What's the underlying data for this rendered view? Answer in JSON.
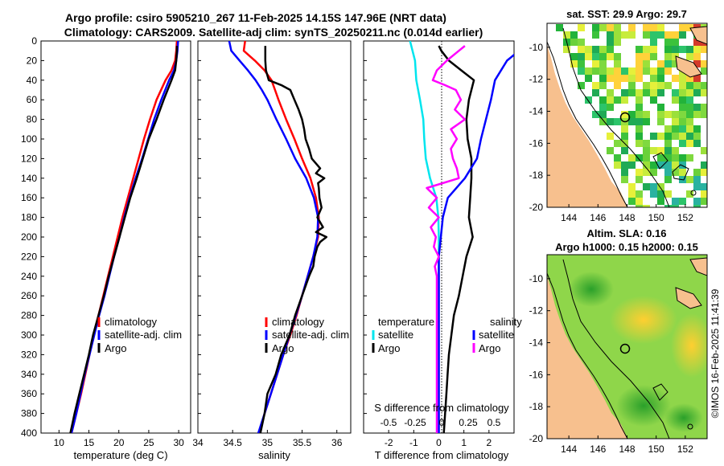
{
  "header": {
    "title_line1": "Argo profile: csiro 5905210_267 11-Feb-2025 14.15S 147.96E (NRT data)",
    "title_line2": "Climatology: CARS2009. Satellite-adj clim: synTS_20250211.nc (0.014d earlier)"
  },
  "colors": {
    "climatology": "#ff0000",
    "satellite": "#0000ff",
    "argo": "#000000",
    "t_satellite_diff": "#00e5ee",
    "t_argo_diff": "#000000",
    "s_satellite_diff": "#0000ff",
    "s_argo_diff": "#ff00ff",
    "land": "#f7c08e"
  },
  "watermark": "©IMOS 16-Feb-2025 11:41:39",
  "chart_data": [
    {
      "type": "line",
      "id": "temperature",
      "xlabel": "temperature (deg C)",
      "ylabel": "",
      "xlim": [
        7,
        32
      ],
      "ylim": [
        400,
        0
      ],
      "xticks": [
        10,
        15,
        20,
        25,
        30
      ],
      "yticks": [
        0,
        20,
        40,
        60,
        80,
        100,
        120,
        140,
        160,
        180,
        200,
        220,
        240,
        260,
        280,
        300,
        320,
        340,
        360,
        380,
        400
      ],
      "legend": [
        "climatology",
        "satellite-adj. clim",
        "Argo"
      ],
      "series": [
        {
          "name": "climatology",
          "depth": [
            0,
            10,
            20,
            30,
            40,
            60,
            80,
            100,
            120,
            140,
            160,
            180,
            200,
            220,
            240,
            260,
            280,
            300,
            320,
            340,
            360,
            380,
            400
          ],
          "values": [
            29.7,
            29.6,
            29.4,
            28.8,
            27.8,
            26.3,
            25.2,
            24.2,
            23.3,
            22.4,
            21.5,
            20.6,
            19.8,
            19.0,
            18.2,
            17.4,
            16.6,
            15.8,
            15.1,
            14.4,
            13.7,
            12.9,
            12.1
          ]
        },
        {
          "name": "satellite-adj. clim",
          "depth": [
            0,
            10,
            20,
            30,
            40,
            60,
            80,
            100,
            120,
            140,
            160,
            180,
            200,
            220,
            240,
            260,
            280,
            300,
            320,
            340,
            360,
            380,
            400
          ],
          "values": [
            29.9,
            29.8,
            29.6,
            29.2,
            28.4,
            27.1,
            25.9,
            24.9,
            23.9,
            22.8,
            21.8,
            20.9,
            20.1,
            19.2,
            18.4,
            17.6,
            16.7,
            15.9,
            15.1,
            14.3,
            13.6,
            12.9,
            12.1
          ]
        },
        {
          "name": "Argo",
          "depth": [
            5,
            10,
            20,
            30,
            40,
            60,
            80,
            100,
            120,
            140,
            160,
            180,
            200,
            220,
            240,
            260,
            280,
            300,
            320,
            340,
            360,
            380,
            400
          ],
          "values": [
            29.7,
            29.7,
            29.6,
            29.4,
            28.8,
            27.5,
            26.3,
            25.0,
            24.0,
            23.0,
            21.9,
            21.0,
            20.1,
            19.2,
            18.3,
            17.5,
            16.6,
            15.7,
            15.0,
            14.2,
            13.4,
            12.6,
            11.9
          ]
        }
      ]
    },
    {
      "type": "line",
      "id": "salinity",
      "xlabel": "salinity",
      "ylabel": "",
      "xlim": [
        34,
        36.2
      ],
      "ylim": [
        400,
        0
      ],
      "xticks": [
        34,
        34.5,
        35,
        35.5,
        36
      ],
      "legend": [
        "climatology",
        "satellite-adj. clim",
        "Argo"
      ],
      "series": [
        {
          "name": "climatology",
          "depth": [
            0,
            10,
            20,
            30,
            40,
            50,
            60,
            80,
            100,
            120,
            140,
            160,
            180,
            200,
            220,
            240,
            260,
            280,
            300,
            320,
            340,
            360,
            380,
            400
          ],
          "values": [
            34.68,
            34.66,
            34.82,
            34.96,
            35.06,
            35.11,
            35.16,
            35.27,
            35.39,
            35.5,
            35.62,
            35.7,
            35.74,
            35.73,
            35.66,
            35.58,
            35.5,
            35.42,
            35.33,
            35.23,
            35.14,
            35.05,
            34.96,
            34.88
          ]
        },
        {
          "name": "satellite-adj. clim",
          "depth": [
            0,
            10,
            20,
            30,
            40,
            50,
            60,
            80,
            100,
            120,
            140,
            160,
            180,
            200,
            220,
            240,
            260,
            280,
            300,
            320,
            340,
            360,
            380,
            400
          ],
          "values": [
            34.45,
            34.48,
            34.6,
            34.72,
            34.83,
            34.92,
            35.0,
            35.13,
            35.27,
            35.4,
            35.56,
            35.67,
            35.73,
            35.72,
            35.66,
            35.58,
            35.5,
            35.41,
            35.32,
            35.23,
            35.14,
            35.05,
            34.96,
            34.87
          ]
        },
        {
          "name": "Argo",
          "depth": [
            5,
            10,
            20,
            30,
            40,
            45,
            50,
            60,
            70,
            80,
            90,
            100,
            110,
            120,
            130,
            135,
            140,
            145,
            150,
            160,
            170,
            180,
            190,
            195,
            200,
            205,
            210,
            220,
            230,
            240,
            260,
            280,
            300,
            320,
            340,
            360,
            380,
            400
          ],
          "values": [
            34.97,
            34.97,
            34.97,
            34.98,
            35.02,
            35.2,
            35.33,
            35.39,
            35.45,
            35.5,
            35.53,
            35.55,
            35.6,
            35.64,
            35.76,
            35.7,
            35.82,
            35.73,
            35.74,
            35.75,
            35.78,
            35.72,
            35.8,
            35.7,
            35.85,
            35.76,
            35.72,
            35.68,
            35.66,
            35.6,
            35.5,
            35.4,
            35.32,
            35.2,
            35.12,
            35.0,
            34.96,
            34.9
          ]
        }
      ]
    },
    {
      "type": "line",
      "id": "differences",
      "xlabel": "T difference from climatology",
      "ylabel": "",
      "xlim": [
        -3,
        3
      ],
      "ylim": [
        400,
        0
      ],
      "xticks": [
        -2,
        -1,
        0,
        1,
        2
      ],
      "top_axis_label": "S difference from climatology",
      "top_ticks": [
        "-0.5",
        "-0.25",
        "0",
        "0.25",
        "0.5"
      ],
      "legend_left_title": "temperature",
      "legend_right_title": "salinity",
      "legend": [
        "satellite",
        "Argo",
        "satellite",
        "Argo"
      ],
      "series": [
        {
          "name": "T satellite",
          "depth": [
            0,
            10,
            20,
            40,
            60,
            80,
            100,
            120,
            140,
            160,
            180,
            200,
            220,
            240,
            260,
            280,
            300,
            320,
            340,
            360,
            380,
            400
          ],
          "values": [
            -1.15,
            -1.05,
            -0.95,
            -0.9,
            -0.75,
            -0.62,
            -0.58,
            -0.52,
            -0.35,
            -0.1,
            -0.02,
            0.0,
            0.0,
            0.0,
            0.0,
            0.0,
            0.0,
            0.0,
            0.0,
            0.0,
            0.0,
            0.0
          ]
        },
        {
          "name": "T Argo",
          "depth": [
            5,
            10,
            20,
            30,
            40,
            60,
            80,
            100,
            120,
            140,
            160,
            180,
            200,
            220,
            240,
            260,
            280,
            300,
            320,
            340,
            360,
            380,
            400
          ],
          "values": [
            0.0,
            0.1,
            0.4,
            0.9,
            1.4,
            1.2,
            1.1,
            1.15,
            1.3,
            1.3,
            1.25,
            1.2,
            1.35,
            1.1,
            0.95,
            0.8,
            0.6,
            0.5,
            0.4,
            0.35,
            0.3,
            0.25,
            0.2
          ]
        },
        {
          "name": "S satellite",
          "depth": [
            0,
            10,
            20,
            40,
            60,
            80,
            100,
            120,
            140,
            160,
            180,
            200,
            220,
            240,
            260,
            280,
            300,
            320,
            340,
            360,
            380,
            400
          ],
          "values": [
            0.84,
            0.8,
            0.68,
            0.56,
            0.52,
            0.47,
            0.42,
            0.38,
            0.26,
            0.09,
            0.04,
            0.02,
            0.0,
            0.0,
            0.0,
            0.0,
            0.0,
            0.0,
            0.0,
            0.0,
            0.0,
            0.0
          ]
        },
        {
          "name": "S Argo",
          "depth": [
            5,
            10,
            20,
            30,
            40,
            45,
            50,
            60,
            70,
            80,
            90,
            100,
            110,
            120,
            130,
            140,
            150,
            160,
            170,
            180,
            190,
            200,
            210,
            220,
            230,
            240,
            260,
            280,
            300,
            320,
            340,
            360,
            380,
            400
          ],
          "values": [
            0.26,
            0.2,
            0.08,
            -0.02,
            -0.06,
            0.06,
            0.17,
            0.22,
            0.16,
            0.26,
            0.12,
            0.18,
            0.12,
            0.14,
            0.18,
            0.2,
            -0.12,
            -0.02,
            -0.1,
            0.0,
            -0.08,
            -0.03,
            -0.05,
            0.0,
            -0.04,
            -0.02,
            -0.02,
            -0.02,
            -0.02,
            -0.02,
            -0.02,
            -0.02,
            -0.02,
            -0.02
          ]
        }
      ]
    },
    {
      "type": "heatmap",
      "id": "sst_map",
      "title": "sat. SST: 29.9 Argo: 29.7",
      "xlim": [
        142.5,
        153.5
      ],
      "ylim": [
        -20,
        -8.5
      ],
      "xticks": [
        144,
        146,
        148,
        150,
        152
      ],
      "yticks": [
        -10,
        -12,
        -14,
        -16,
        -18,
        -20
      ],
      "argo_position": {
        "lon": 147.96,
        "lat": -14.15
      }
    },
    {
      "type": "heatmap",
      "id": "sla_map",
      "title_line1": "Altim. SLA: 0.16",
      "title_line2": "Argo h1000: 0.15 h2000: 0.15",
      "xlim": [
        142.5,
        153.5
      ],
      "ylim": [
        -20,
        -8.5
      ],
      "xticks": [
        144,
        146,
        148,
        150,
        152
      ],
      "yticks": [
        -10,
        -12,
        -14,
        -16,
        -18,
        -20
      ],
      "argo_position": {
        "lon": 147.96,
        "lat": -14.15
      }
    }
  ]
}
